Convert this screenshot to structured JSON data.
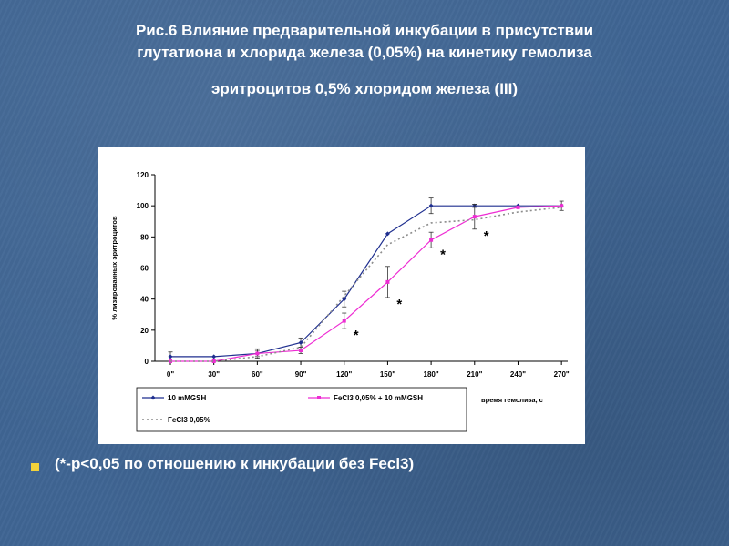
{
  "slide": {
    "title_line1": "Рис.6   Влияние предварительной инкубации в присутствии",
    "title_line2": "глутатиона и хлорида железа (0,05%) на кинетику гемолиза",
    "title_line3": "эритроцитов 0,5% хлоридом железа (III)",
    "footnote": "(*-p<0,05 по отношению к инкубации без Fecl3)"
  },
  "colors": {
    "series_10mMGSH": "#1f2f8f",
    "series_FeCl3_GSH": "#ee2dd3",
    "series_FeCl3": "#8c8c8c"
  },
  "chart_data": {
    "type": "line",
    "title": "",
    "xlabel": "время гемолиза, с",
    "ylabel": "% лизированных эритроцитов",
    "categories": [
      "0\"",
      "30\"",
      "60\"",
      "90\"",
      "120\"",
      "150\"",
      "180\"",
      "210\"",
      "240\"",
      "270\""
    ],
    "ylim": [
      0,
      120
    ],
    "yticks": [
      "0",
      "20",
      "40",
      "60",
      "80",
      "100",
      "120"
    ],
    "grid": false,
    "legend": "bottom",
    "series": [
      {
        "name": "10 mMGSH",
        "style": "solid-diamond",
        "values": [
          3,
          3,
          5,
          12,
          40,
          82,
          100,
          100,
          100,
          100
        ],
        "errors": [
          3,
          0,
          2,
          3,
          5,
          0,
          5,
          1,
          0,
          0
        ]
      },
      {
        "name": "FeCl3 0,05% + 10 mMGSH",
        "style": "solid-square",
        "values": [
          0,
          0,
          5,
          7,
          26,
          51,
          78,
          93,
          99,
          100
        ],
        "errors": [
          0,
          0,
          3,
          2,
          5,
          10,
          5,
          8,
          0,
          3
        ]
      },
      {
        "name": "FeCl3 0,05%",
        "style": "dotted",
        "values": [
          0,
          0,
          3,
          9,
          42,
          75,
          89,
          91,
          96,
          99
        ],
        "errors": [
          0,
          0,
          0,
          0,
          0,
          0,
          0,
          0,
          0,
          0
        ]
      }
    ],
    "annotations": [
      {
        "text": "*",
        "category_index": 4
      },
      {
        "text": "*",
        "category_index": 5
      },
      {
        "text": "*",
        "category_index": 6
      },
      {
        "text": "*",
        "category_index": 7
      }
    ]
  }
}
